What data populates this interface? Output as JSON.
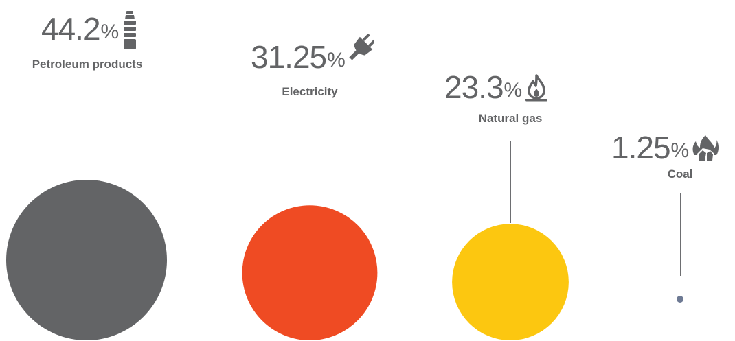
{
  "chart_data": {
    "type": "bubble",
    "unit": "%",
    "categories": [
      "Petroleum products",
      "Electricity",
      "Natural gas",
      "Coal"
    ],
    "values": [
      44.2,
      31.25,
      23.3,
      1.25
    ],
    "value_labels": [
      "44.2",
      "31.25",
      "23.3",
      "1.25"
    ],
    "colors": [
      "#636466",
      "#ef4b23",
      "#fcc710",
      "#6e7a94"
    ],
    "icons": [
      "gas-canister-icon",
      "plug-icon",
      "flame-icon",
      "coal-fire-icon"
    ],
    "grid": false,
    "legend": "none"
  }
}
